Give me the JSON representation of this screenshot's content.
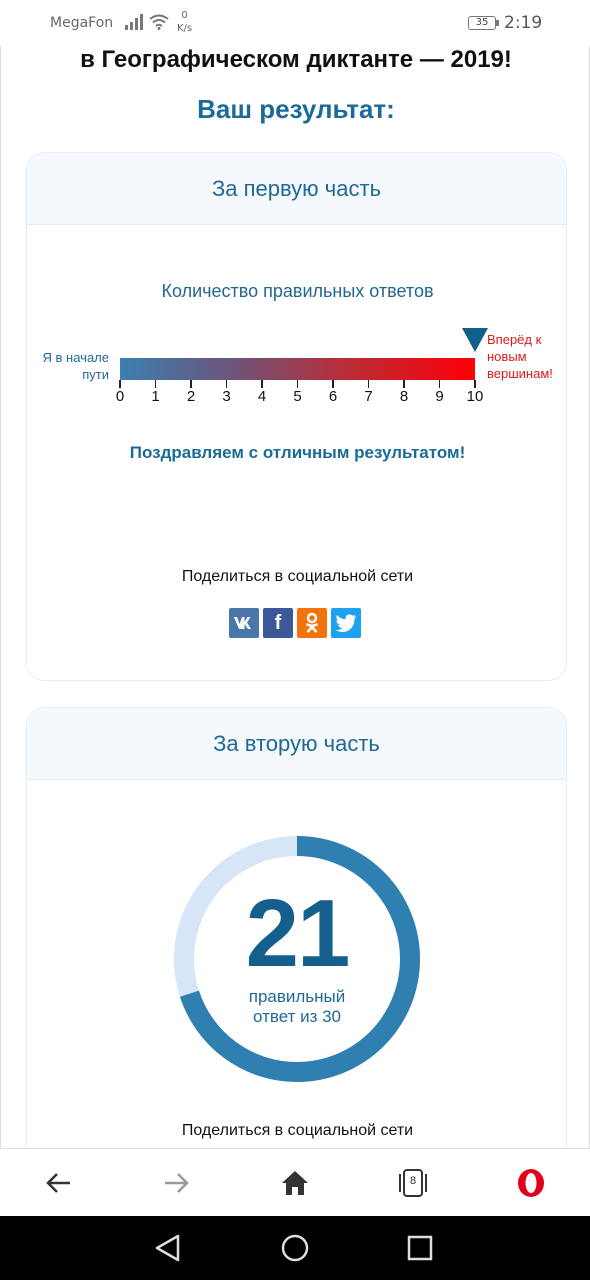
{
  "status_bar": {
    "carrier": "MegaFon",
    "net_speed_value": "0",
    "net_speed_unit": "K/s",
    "battery": "35",
    "time": "2:19"
  },
  "page": {
    "top_heading": "в Географическом диктанте — 2019!",
    "result_heading": "Ваш результат:"
  },
  "part1": {
    "title": "За первую часть",
    "scale_title": "Количество правильных ответов",
    "left_label_line1": "Я в начале",
    "left_label_line2": "пути",
    "right_label_line1": "Вперёд к",
    "right_label_line2": "новым",
    "right_label_line3": "вершинам!",
    "scale_min": 0,
    "scale_max": 10,
    "marker_value": 10,
    "ticks": [
      "0",
      "1",
      "2",
      "3",
      "4",
      "5",
      "6",
      "7",
      "8",
      "9",
      "10"
    ],
    "congrats": "Поздравляем с отличным результатом!",
    "share_label": "Поделиться в социальной сети",
    "share_buttons": [
      {
        "name": "vk",
        "glyph": "vk",
        "color": "#4a76a8"
      },
      {
        "name": "facebook",
        "glyph": "f",
        "color": "#3b5998"
      },
      {
        "name": "odnoklassniki",
        "glyph": "ok",
        "color": "#f2720c"
      },
      {
        "name": "twitter",
        "glyph": "tw",
        "color": "#1da1f2"
      }
    ]
  },
  "part2": {
    "title": "За вторую часть",
    "correct": "21",
    "correct_value": 21,
    "total_value": 30,
    "caption_line1": "правильный",
    "caption_line2": "ответ из 30",
    "share_label": "Поделиться в социальной сети",
    "ring_color": "#2f7fb1",
    "ring_track_color": "#d6e6f7"
  },
  "browser_bar": {
    "tabs_count": "8",
    "icons": [
      "back-arrow-icon",
      "forward-arrow-icon",
      "home-icon",
      "tabs-icon",
      "opera-icon"
    ]
  },
  "nav_bar": {
    "icons": [
      "back-triangle-icon",
      "home-circle-icon",
      "recents-square-icon"
    ]
  }
}
